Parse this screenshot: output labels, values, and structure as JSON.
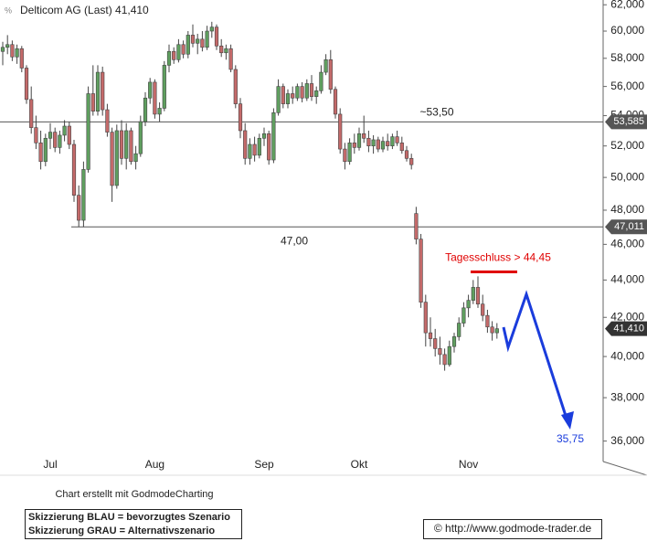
{
  "chart_data": {
    "type": "candlestick",
    "title": "Delticom AG (Last) 41,410",
    "log_scale": true,
    "ylim": [
      34500,
      62370
    ],
    "yticks": [
      {
        "value": 36000,
        "label": "36,000"
      },
      {
        "value": 38000,
        "label": "38,000"
      },
      {
        "value": 40000,
        "label": "40,000"
      },
      {
        "value": 42000,
        "label": "42,000"
      },
      {
        "value": 44000,
        "label": "44,000"
      },
      {
        "value": 46000,
        "label": "46,000"
      },
      {
        "value": 48000,
        "label": "48,000"
      },
      {
        "value": 50000,
        "label": "50,000"
      },
      {
        "value": 52000,
        "label": "52,000"
      },
      {
        "value": 54000,
        "label": "54,000"
      },
      {
        "value": 56000,
        "label": "56,000"
      },
      {
        "value": 58000,
        "label": "58,000"
      },
      {
        "value": 60000,
        "label": "60,000"
      },
      {
        "value": 62000,
        "label": "62,000"
      }
    ],
    "up_color": "#5f9f5f",
    "down_color": "#c46a6a",
    "categories": [
      null,
      null,
      null,
      null,
      null,
      null,
      null,
      null,
      null,
      null,
      "Jul",
      null,
      null,
      null,
      null,
      null,
      null,
      null,
      null,
      null,
      null,
      null,
      null,
      null,
      null,
      null,
      null,
      null,
      null,
      null,
      null,
      null,
      "Aug",
      null,
      null,
      null,
      null,
      null,
      null,
      null,
      null,
      null,
      null,
      null,
      null,
      null,
      null,
      null,
      null,
      null,
      null,
      null,
      null,
      null,
      null,
      "Sep",
      null,
      null,
      null,
      null,
      null,
      null,
      null,
      null,
      null,
      null,
      null,
      null,
      null,
      null,
      null,
      null,
      null,
      null,
      null,
      "Okt",
      null,
      null,
      null,
      null,
      null,
      null,
      null,
      null,
      null,
      null,
      null,
      null,
      null,
      null,
      null,
      null,
      null,
      null,
      null,
      null,
      null,
      null,
      "Nov",
      null,
      null,
      null,
      null,
      null,
      null
    ],
    "open": [
      58500,
      58800,
      59000,
      58100,
      58700,
      57300,
      55100,
      53200,
      52200,
      51000,
      52500,
      52900,
      51900,
      52700,
      53300,
      52100,
      48900,
      47400,
      50500,
      55500,
      54300,
      57000,
      54400,
      52900,
      49500,
      53000,
      51200,
      53000,
      51000,
      51500,
      53600,
      55200,
      56300,
      54100,
      54500,
      57500,
      58500,
      57900,
      59000,
      58300,
      59700,
      59100,
      59400,
      58800,
      60000,
      60300,
      58900,
      58400,
      58700,
      57200,
      54800,
      53000,
      51200,
      52100,
      51400,
      52500,
      52800,
      51100,
      54200,
      56000,
      54800,
      55500,
      55200,
      56000,
      55200,
      56200,
      55300,
      55700,
      57000,
      57900,
      55800,
      54100,
      51800,
      51000,
      52200,
      51900,
      52800,
      52500,
      52000,
      52400,
      51800,
      52300,
      52000,
      52600,
      52200,
      51700,
      51200,
      47800,
      46300,
      42800,
      41200,
      40900,
      40400,
      40100,
      39600,
      40500,
      41000,
      41700,
      42500,
      42900,
      43600,
      42700,
      42100,
      41500,
      41200
    ],
    "high": [
      59200,
      59700,
      59300,
      59000,
      58900,
      57500,
      56000,
      54000,
      53000,
      52800,
      53500,
      53200,
      53000,
      53700,
      53600,
      52400,
      49500,
      51000,
      56000,
      57500,
      57500,
      57400,
      54800,
      53200,
      53400,
      53700,
      53500,
      53200,
      52000,
      54000,
      55600,
      56600,
      56500,
      54900,
      57800,
      59000,
      58800,
      59400,
      59300,
      60000,
      60500,
      59800,
      60000,
      60400,
      60700,
      60500,
      59400,
      59000,
      59000,
      57500,
      55200,
      53500,
      52500,
      52600,
      52800,
      53200,
      53000,
      54500,
      56500,
      56200,
      55800,
      56000,
      56200,
      56300,
      56500,
      56800,
      56000,
      57500,
      58300,
      58600,
      56000,
      54500,
      52200,
      52500,
      52800,
      53200,
      54000,
      53000,
      52700,
      52600,
      52600,
      52800,
      52800,
      53000,
      52600,
      52000,
      51500,
      48200,
      46600,
      43200,
      42000,
      41400,
      41000,
      40400,
      40800,
      41200,
      42000,
      42800,
      43200,
      44000,
      44200,
      43200,
      42400,
      41800,
      41700
    ],
    "low": [
      57500,
      58300,
      57800,
      57600,
      57000,
      54800,
      52800,
      51800,
      50500,
      50700,
      51800,
      51600,
      51500,
      52300,
      51800,
      48500,
      47011,
      47000,
      50300,
      54000,
      54000,
      54000,
      52600,
      48500,
      49300,
      50800,
      50500,
      50800,
      50500,
      51300,
      53300,
      54800,
      53800,
      53600,
      54300,
      57000,
      57600,
      57700,
      58000,
      58000,
      58800,
      58300,
      58500,
      58600,
      59500,
      58600,
      58100,
      57900,
      57000,
      54500,
      52500,
      50800,
      50800,
      51000,
      51200,
      52000,
      50800,
      50900,
      54000,
      54500,
      54500,
      54800,
      55000,
      54900,
      55000,
      55000,
      54800,
      55500,
      56800,
      55500,
      53800,
      51500,
      50500,
      50800,
      51500,
      51700,
      52200,
      51600,
      51500,
      51600,
      51600,
      51700,
      51800,
      52000,
      51500,
      51000,
      50500,
      46000,
      42500,
      40500,
      40500,
      40000,
      39600,
      39300,
      39500,
      40200,
      40800,
      41500,
      42000,
      42700,
      42500,
      41800,
      41200,
      40800,
      40900
    ],
    "close": [
      58800,
      59000,
      58100,
      58700,
      57300,
      55100,
      53200,
      52200,
      51000,
      52500,
      52900,
      51900,
      52700,
      53300,
      52100,
      48900,
      47400,
      50500,
      55500,
      54300,
      57000,
      54400,
      52900,
      49500,
      53000,
      51200,
      53000,
      51000,
      51500,
      53600,
      55200,
      56300,
      54100,
      54500,
      57500,
      58500,
      57900,
      59000,
      58300,
      59700,
      59100,
      59400,
      58800,
      60000,
      60300,
      58900,
      58400,
      58700,
      57200,
      54800,
      53000,
      51200,
      52100,
      51400,
      52500,
      52800,
      51100,
      54200,
      56000,
      54800,
      55500,
      55200,
      56000,
      55200,
      56200,
      55300,
      55700,
      57000,
      57900,
      55800,
      54100,
      51800,
      51000,
      52200,
      51900,
      52800,
      52500,
      52000,
      52400,
      51800,
      52300,
      52000,
      52600,
      52200,
      51700,
      51200,
      50800,
      46300,
      42800,
      41200,
      40900,
      40400,
      40100,
      39600,
      40500,
      41000,
      41700,
      42500,
      42900,
      43600,
      42700,
      42100,
      41500,
      41200,
      41410
    ],
    "levels": [
      {
        "value": 53585,
        "label": "53,585",
        "note": "~53,50"
      },
      {
        "value": 47011,
        "label": "47,011",
        "note": "47,00"
      }
    ],
    "last": {
      "value": 41410,
      "label": "41,410"
    },
    "trigger": {
      "value": 44450,
      "label": "Tagesschluss > 44,45",
      "color": "#e00000"
    },
    "target_label": "35,75",
    "credit": "Chart erstellt mit GodmodeCharting",
    "legend_lines": [
      "Skizzierung BLAU = bevorzugtes Szenario",
      "Skizzierung GRAU = Alternativszenario"
    ],
    "copyright": "© http://www.godmode-trader.de"
  }
}
